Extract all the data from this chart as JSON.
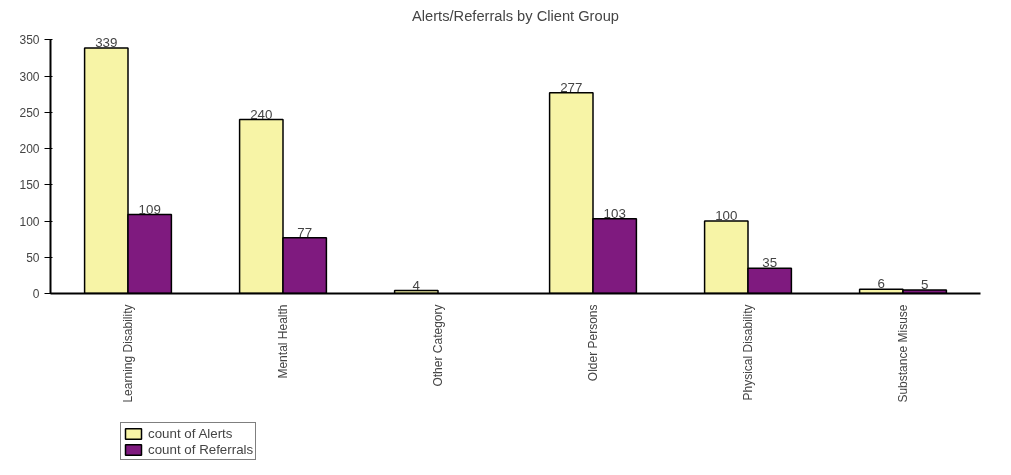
{
  "chart_data": {
    "type": "bar",
    "title": "Alerts/Referrals by Client Group",
    "categories": [
      "Learning Disability",
      "Mental Health",
      "Other Category",
      "Older Persons",
      "Physical Disability",
      "Substance Misuse"
    ],
    "series": [
      {
        "name": "count of Alerts",
        "color": "#f7f4a6",
        "values": [
          339,
          240,
          4,
          277,
          100,
          6
        ]
      },
      {
        "name": "count of Referrals",
        "color": "#7f1a7f",
        "values": [
          109,
          77,
          null,
          103,
          35,
          5
        ]
      }
    ],
    "ylim": [
      0,
      350
    ],
    "yticks": [
      0,
      50,
      100,
      150,
      200,
      250,
      300,
      350
    ],
    "grid": false,
    "legend": "bottom left",
    "data_labels": true
  }
}
